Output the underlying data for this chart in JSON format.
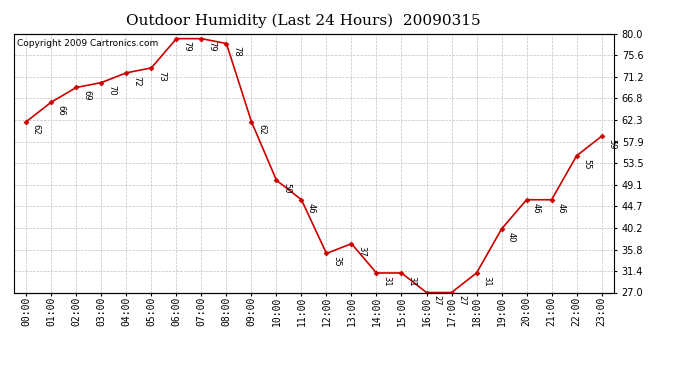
{
  "title": "Outdoor Humidity (Last 24 Hours)  20090315",
  "copyright": "Copyright 2009 Cartronics.com",
  "hours": [
    0,
    1,
    2,
    3,
    4,
    5,
    6,
    7,
    8,
    9,
    10,
    11,
    12,
    13,
    14,
    15,
    16,
    17,
    18,
    19,
    20,
    21,
    22,
    23
  ],
  "values": [
    62,
    66,
    69,
    70,
    72,
    73,
    79,
    79,
    78,
    62,
    50,
    46,
    35,
    37,
    31,
    31,
    27,
    27,
    31,
    40,
    46,
    46,
    55,
    59
  ],
  "xlabels": [
    "00:00",
    "01:00",
    "02:00",
    "03:00",
    "04:00",
    "05:00",
    "06:00",
    "07:00",
    "08:00",
    "09:00",
    "10:00",
    "11:00",
    "12:00",
    "13:00",
    "14:00",
    "15:00",
    "16:00",
    "17:00",
    "18:00",
    "19:00",
    "20:00",
    "21:00",
    "22:00",
    "23:00"
  ],
  "yticks": [
    27.0,
    31.4,
    35.8,
    40.2,
    44.7,
    49.1,
    53.5,
    57.9,
    62.3,
    66.8,
    71.2,
    75.6,
    80.0
  ],
  "ylim": [
    27.0,
    80.0
  ],
  "line_color": "#cc0000",
  "marker_color": "#cc0000",
  "bg_color": "#ffffff",
  "plot_bg_color": "#ffffff",
  "grid_color": "#c0c0c0",
  "title_fontsize": 11,
  "label_fontsize": 7,
  "copyright_fontsize": 6.5
}
